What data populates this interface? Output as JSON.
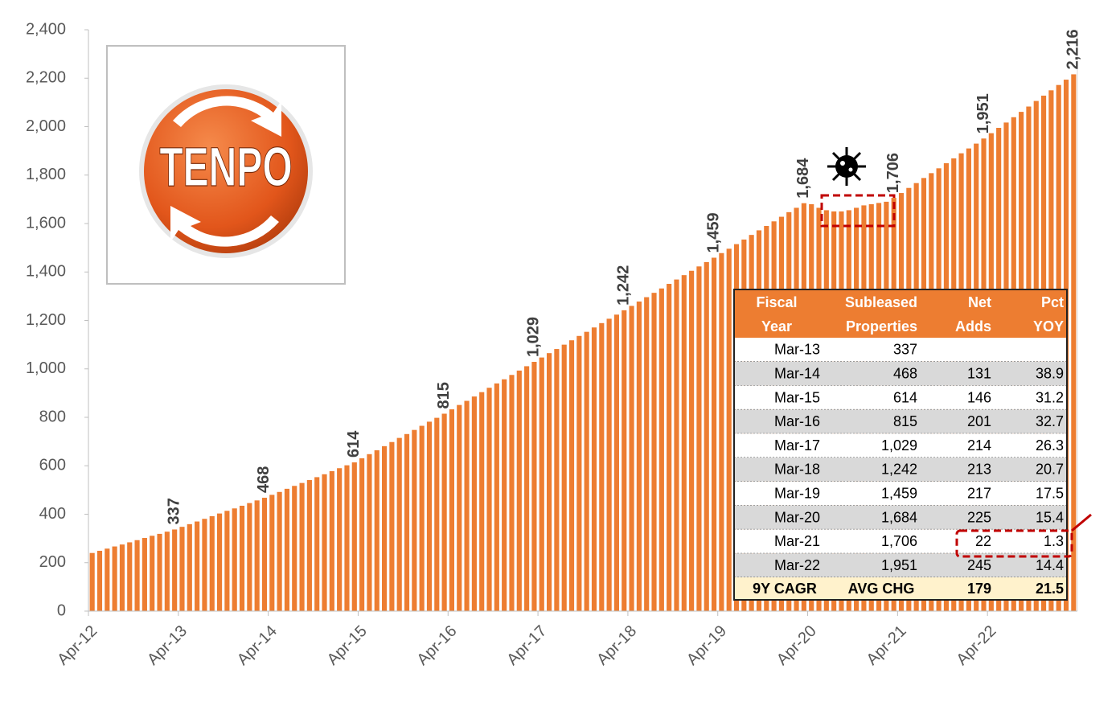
{
  "chart_data": {
    "type": "bar",
    "color": "#ED7D31",
    "grid": false,
    "logo_text": "TENPO",
    "categories": [
      "Apr-12",
      null,
      null,
      null,
      null,
      null,
      null,
      null,
      null,
      null,
      null,
      null,
      "Apr-13",
      null,
      null,
      null,
      null,
      null,
      null,
      null,
      null,
      null,
      null,
      null,
      "Apr-14",
      null,
      null,
      null,
      null,
      null,
      null,
      null,
      null,
      null,
      null,
      null,
      "Apr-15",
      null,
      null,
      null,
      null,
      null,
      null,
      null,
      null,
      null,
      null,
      null,
      "Apr-16",
      null,
      null,
      null,
      null,
      null,
      null,
      null,
      null,
      null,
      null,
      null,
      "Apr-17",
      null,
      null,
      null,
      null,
      null,
      null,
      null,
      null,
      null,
      null,
      null,
      "Apr-18",
      null,
      null,
      null,
      null,
      null,
      null,
      null,
      null,
      null,
      null,
      null,
      "Apr-19",
      null,
      null,
      null,
      null,
      null,
      null,
      null,
      null,
      null,
      null,
      null,
      "Apr-20",
      null,
      null,
      null,
      null,
      null,
      null,
      null,
      null,
      null,
      null,
      null,
      "Apr-21",
      null,
      null,
      null,
      null,
      null,
      null,
      null,
      null,
      null,
      null,
      null,
      "Apr-22",
      null,
      null,
      null,
      null,
      null,
      null,
      null,
      null,
      null,
      null,
      null
    ],
    "values": [
      240,
      249,
      258,
      267,
      275,
      284,
      293,
      302,
      311,
      319,
      328,
      337,
      348,
      359,
      370,
      381,
      392,
      403,
      414,
      424,
      435,
      446,
      457,
      468,
      480,
      492,
      505,
      517,
      529,
      541,
      553,
      565,
      578,
      590,
      602,
      614,
      631,
      648,
      664,
      681,
      698,
      715,
      731,
      748,
      765,
      782,
      798,
      815,
      833,
      851,
      868,
      886,
      904,
      922,
      940,
      957,
      975,
      993,
      1011,
      1029,
      1047,
      1065,
      1082,
      1100,
      1118,
      1136,
      1153,
      1171,
      1189,
      1207,
      1224,
      1242,
      1260,
      1278,
      1296,
      1314,
      1332,
      1351,
      1369,
      1387,
      1405,
      1423,
      1441,
      1459,
      1478,
      1496,
      1515,
      1534,
      1553,
      1572,
      1590,
      1609,
      1628,
      1647,
      1665,
      1684,
      1680,
      1665,
      1655,
      1650,
      1650,
      1655,
      1665,
      1675,
      1680,
      1685,
      1690,
      1706,
      1726,
      1747,
      1767,
      1788,
      1808,
      1828,
      1849,
      1869,
      1890,
      1910,
      1930,
      1951,
      1973,
      1995,
      2017,
      2039,
      2061,
      2083,
      2106,
      2128,
      2150,
      2172,
      2194,
      2216
    ],
    "value_labels": [
      null,
      null,
      null,
      null,
      null,
      null,
      null,
      null,
      null,
      null,
      null,
      "337",
      null,
      null,
      null,
      null,
      null,
      null,
      null,
      null,
      null,
      null,
      null,
      "468",
      null,
      null,
      null,
      null,
      null,
      null,
      null,
      null,
      null,
      null,
      null,
      "614",
      null,
      null,
      null,
      null,
      null,
      null,
      null,
      null,
      null,
      null,
      null,
      "815",
      null,
      null,
      null,
      null,
      null,
      null,
      null,
      null,
      null,
      null,
      null,
      "1,029",
      null,
      null,
      null,
      null,
      null,
      null,
      null,
      null,
      null,
      null,
      null,
      "1,242",
      null,
      null,
      null,
      null,
      null,
      null,
      null,
      null,
      null,
      null,
      null,
      "1,459",
      null,
      null,
      null,
      null,
      null,
      null,
      null,
      null,
      null,
      null,
      null,
      "1,684",
      null,
      null,
      null,
      null,
      null,
      null,
      null,
      null,
      null,
      null,
      null,
      "1,706",
      null,
      null,
      null,
      null,
      null,
      null,
      null,
      null,
      null,
      null,
      null,
      "1,951",
      null,
      null,
      null,
      null,
      null,
      null,
      null,
      null,
      null,
      null,
      null,
      "2,216"
    ],
    "ylim": [
      0,
      2400
    ],
    "yticks": [
      0,
      200,
      400,
      600,
      800,
      {
        "value": 1000,
        "label": "1,000"
      },
      {
        "value": 1200,
        "label": "1,200"
      },
      {
        "value": 1400,
        "label": "1,400"
      },
      {
        "value": 1600,
        "label": "1,600"
      },
      {
        "value": 1800,
        "label": "1,800"
      },
      {
        "value": 2000,
        "label": "2,000"
      },
      {
        "value": 2200,
        "label": "2,200"
      },
      {
        "value": 2400,
        "label": "2,400"
      }
    ]
  },
  "table": {
    "columns": [
      [
        "Fiscal",
        "Year"
      ],
      [
        "Subleased",
        "Properties"
      ],
      [
        "Net",
        "Adds"
      ],
      [
        "Pct",
        "YOY"
      ]
    ],
    "rows": [
      [
        "Mar-13",
        "337",
        null,
        null
      ],
      [
        "Mar-14",
        "468",
        "131",
        "38.9"
      ],
      [
        "Mar-15",
        "614",
        "146",
        "31.2"
      ],
      [
        "Mar-16",
        "815",
        "201",
        "32.7"
      ],
      [
        "Mar-17",
        "1,029",
        "214",
        "26.3"
      ],
      [
        "Mar-18",
        "1,242",
        "213",
        "20.7"
      ],
      [
        "Mar-19",
        "1,459",
        "217",
        "17.5"
      ],
      [
        "Mar-20",
        "1,684",
        "225",
        "15.4"
      ],
      [
        "Mar-21",
        "1,706",
        "22",
        "1.3"
      ],
      [
        "Mar-22",
        "1,951",
        "245",
        "14.4"
      ]
    ],
    "footer": [
      "9Y CAGR",
      "AVG CHG",
      "179",
      "21.5"
    ]
  }
}
